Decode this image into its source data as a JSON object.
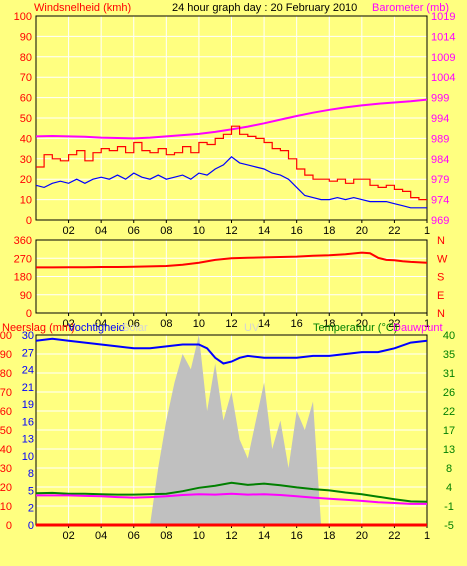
{
  "header": {
    "left_title": "Windsnelheid (kmh)",
    "center_title": "24 hour graph day : 20 February 2010",
    "right_title": "Barometer (mb)"
  },
  "panel3_header": {
    "rain_label": "Neerslag (mm)",
    "humidity_label": "Vochtigheid",
    "solar_label": "Solar",
    "uv_label": "UV",
    "temp_label": "Temperatuur (°C)",
    "dew_label": "Dauwpunt"
  },
  "colors": {
    "background": "#ffff80",
    "plot_bg": "#ffff80",
    "grid": "#ffffff",
    "wind_gust": "#ff0000",
    "wind_avg": "#0000ff",
    "barometer": "#ff00ff",
    "direction": "#ff0000",
    "humidity": "#0000ff",
    "solar": "#c0c0c0",
    "temperature": "#008000",
    "dewpoint": "#ff00ff",
    "rain": "#ff0000"
  },
  "chart_data": [
    {
      "type": "line",
      "name": "wind-barometer",
      "x_ticks": [
        "02",
        "04",
        "06",
        "08",
        "10",
        "12",
        "14",
        "16",
        "18",
        "20",
        "22",
        "1"
      ],
      "y_left": {
        "label": "Windsnelheid (kmh)",
        "ylim": [
          0,
          100
        ],
        "ticks": [
          "0",
          "10",
          "20",
          "30",
          "40",
          "50",
          "60",
          "70",
          "80",
          "90",
          "100"
        ]
      },
      "y_right": {
        "label": "Barometer (mb)",
        "ylim": [
          969,
          1019
        ],
        "ticks": [
          "969",
          "974",
          "979",
          "984",
          "989",
          "994",
          "999",
          "1004",
          "1009",
          "1014",
          "1019"
        ]
      },
      "grid": true,
      "series": [
        {
          "key": "gust",
          "axis": "left",
          "x": [
            0,
            0.5,
            1,
            1.5,
            2,
            2.5,
            3,
            3.5,
            4,
            4.5,
            5,
            5.5,
            6,
            6.5,
            7,
            7.5,
            8,
            8.5,
            9,
            9.5,
            10,
            10.5,
            11,
            11.5,
            12,
            12.5,
            13,
            13.5,
            14,
            14.5,
            15,
            15.5,
            16,
            16.5,
            17,
            17.5,
            18,
            18.5,
            19,
            19.5,
            20,
            20.5,
            21,
            21.5,
            22,
            22.5,
            23,
            23.5,
            24
          ],
          "values": [
            26,
            32,
            30,
            29,
            32,
            34,
            29,
            33,
            35,
            34,
            36,
            33,
            38,
            34,
            33,
            35,
            32,
            33,
            36,
            33,
            38,
            37,
            40,
            42,
            46,
            42,
            41,
            40,
            38,
            35,
            34,
            30,
            25,
            22,
            20,
            20,
            19,
            20,
            18,
            20,
            20,
            17,
            16,
            17,
            15,
            14,
            11,
            10,
            10
          ]
        },
        {
          "key": "average",
          "axis": "left",
          "x": [
            0,
            0.5,
            1,
            1.5,
            2,
            2.5,
            3,
            3.5,
            4,
            4.5,
            5,
            5.5,
            6,
            6.5,
            7,
            7.5,
            8,
            8.5,
            9,
            9.5,
            10,
            10.5,
            11,
            11.5,
            12,
            12.5,
            13,
            13.5,
            14,
            14.5,
            15,
            15.5,
            16,
            16.5,
            17,
            17.5,
            18,
            18.5,
            19,
            19.5,
            20,
            20.5,
            21,
            21.5,
            22,
            22.5,
            23,
            23.5,
            24
          ],
          "values": [
            17,
            16,
            18,
            19,
            18,
            20,
            18,
            20,
            21,
            20,
            22,
            20,
            23,
            21,
            20,
            22,
            20,
            21,
            22,
            20,
            23,
            22,
            25,
            27,
            31,
            28,
            27,
            26,
            25,
            23,
            22,
            20,
            16,
            12,
            11,
            10,
            10,
            11,
            10,
            11,
            10,
            9,
            9,
            9,
            8,
            7,
            6,
            6,
            6
          ]
        },
        {
          "key": "barometer",
          "axis": "right",
          "x": [
            0,
            1,
            2,
            3,
            4,
            5,
            6,
            7,
            8,
            9,
            10,
            11,
            12,
            13,
            14,
            15,
            16,
            17,
            18,
            19,
            20,
            21,
            22,
            23,
            24
          ],
          "values": [
            989.5,
            989.6,
            989.5,
            989.4,
            989.2,
            989.1,
            989.0,
            989.2,
            989.5,
            989.8,
            990.1,
            990.6,
            991.2,
            991.9,
            992.7,
            993.6,
            994.5,
            995.3,
            996.0,
            996.6,
            997.1,
            997.5,
            997.8,
            998.1,
            998.5
          ]
        }
      ]
    },
    {
      "type": "line",
      "name": "wind-direction",
      "x_ticks": [
        "02",
        "04",
        "06",
        "08",
        "10",
        "12",
        "14",
        "16",
        "18",
        "20",
        "22",
        "1"
      ],
      "y_left": {
        "ylim": [
          0,
          360
        ],
        "ticks": [
          "0",
          "90",
          "180",
          "270",
          "360"
        ]
      },
      "y_right_labels": [
        "N",
        "W",
        "S",
        "E",
        "N"
      ],
      "grid": true,
      "series": [
        {
          "key": "direction",
          "axis": "left",
          "x": [
            0,
            1,
            2,
            3,
            4,
            5,
            6,
            7,
            8,
            9,
            10,
            11,
            12,
            13,
            14,
            15,
            16,
            17,
            18,
            19,
            20,
            20.5,
            21,
            21.5,
            22,
            22.5,
            23,
            24
          ],
          "values": [
            225,
            225,
            226,
            226,
            227,
            227,
            228,
            230,
            232,
            238,
            248,
            262,
            270,
            272,
            274,
            276,
            278,
            282,
            285,
            290,
            298,
            295,
            272,
            262,
            260,
            255,
            252,
            248
          ]
        }
      ]
    },
    {
      "type": "line",
      "name": "rain-humidity-temperature",
      "x_ticks": [
        "02",
        "04",
        "06",
        "08",
        "10",
        "12",
        "14",
        "16",
        "18",
        "20",
        "22",
        "1"
      ],
      "y_left": {
        "label": "Neerslag (mm)",
        "ylim": [
          0,
          100
        ],
        "ticks": [
          "0",
          "10",
          "20",
          "30",
          "40",
          "50",
          "60",
          "70",
          "80",
          "90",
          "100"
        ]
      },
      "y_left_inner": {
        "label": "Vochtigheid",
        "ylim": [
          0,
          30
        ],
        "ticks": [
          "0",
          "2",
          "5",
          "8",
          "10",
          "13",
          "16",
          "19",
          "21",
          "24",
          "27",
          "30"
        ]
      },
      "y_right": {
        "label": "Temperatuur (°C)",
        "ylim": [
          -5,
          40
        ],
        "ticks": [
          "-5",
          "-1",
          "4",
          "8",
          "13",
          "17",
          "22",
          "26",
          "31",
          "35",
          "40"
        ]
      },
      "grid": true,
      "series": [
        {
          "key": "humidity",
          "axis": "left",
          "x": [
            0,
            1,
            2,
            3,
            4,
            5,
            6,
            7,
            8,
            9,
            10,
            10.5,
            11,
            11.5,
            12,
            12.5,
            13,
            14,
            15,
            16,
            17,
            18,
            19,
            20,
            21,
            22,
            23,
            24
          ],
          "values": [
            97,
            98,
            97,
            96,
            95,
            94,
            93,
            93,
            94,
            95,
            95,
            93,
            88,
            85,
            86,
            88,
            89,
            88,
            88,
            88,
            89,
            89,
            90,
            91,
            91,
            93,
            96,
            97
          ]
        },
        {
          "key": "solar",
          "axis": "left",
          "x": [
            0,
            7,
            7.5,
            8,
            8.5,
            9,
            9.5,
            10,
            10.5,
            11,
            11.5,
            12,
            12.5,
            13,
            13.5,
            14,
            14.5,
            15,
            15.5,
            16,
            16.5,
            17,
            17.5,
            18,
            24
          ],
          "values": [
            0,
            0,
            30,
            55,
            75,
            90,
            82,
            100,
            60,
            85,
            55,
            70,
            45,
            35,
            55,
            75,
            40,
            55,
            30,
            60,
            50,
            65,
            0,
            0,
            0
          ]
        },
        {
          "key": "temperature",
          "axis": "right",
          "x": [
            0,
            1,
            2,
            3,
            4,
            5,
            6,
            7,
            8,
            9,
            10,
            11,
            12,
            13,
            14,
            15,
            16,
            17,
            18,
            19,
            20,
            21,
            22,
            23,
            24
          ],
          "values": [
            2.5,
            2.6,
            2.4,
            2.4,
            2.3,
            2.2,
            2.2,
            2.3,
            2.4,
            3.0,
            3.8,
            4.3,
            5.0,
            4.5,
            4.8,
            4.4,
            3.9,
            3.5,
            3.2,
            2.7,
            2.3,
            1.7,
            1.1,
            0.6,
            0.5
          ]
        },
        {
          "key": "dewpoint",
          "axis": "right",
          "x": [
            0,
            1,
            2,
            3,
            4,
            5,
            6,
            7,
            8,
            9,
            10,
            11,
            12,
            13,
            14,
            15,
            16,
            17,
            18,
            19,
            20,
            21,
            22,
            23,
            24
          ],
          "values": [
            2.0,
            2.0,
            2.0,
            1.9,
            1.8,
            1.6,
            1.5,
            1.6,
            1.8,
            2.1,
            2.3,
            2.2,
            2.4,
            2.2,
            2.3,
            2.1,
            1.8,
            1.5,
            1.2,
            1.0,
            0.7,
            0.4,
            0.2,
            0.0,
            0.0
          ]
        },
        {
          "key": "rain",
          "axis": "left",
          "x": [
            0,
            24
          ],
          "values": [
            0,
            0
          ]
        }
      ]
    }
  ]
}
